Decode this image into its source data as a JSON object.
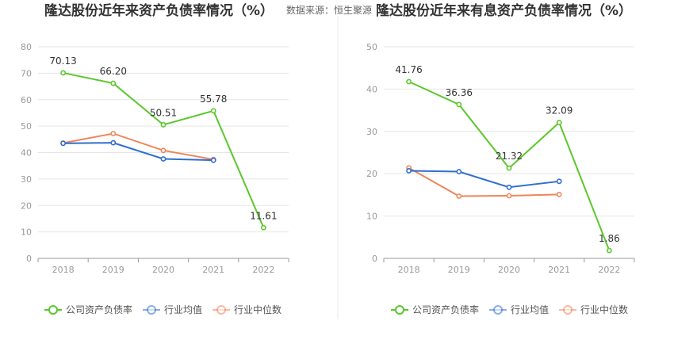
{
  "source": "数据来源：恒生聚源",
  "chart_data": [
    {
      "type": "line",
      "title": "隆达股份近年来资产负债率情况（%）",
      "categories": [
        "2018",
        "2019",
        "2020",
        "2021",
        "2022"
      ],
      "ylim": [
        0,
        80
      ],
      "yticks": [
        0,
        10,
        20,
        30,
        40,
        50,
        60,
        70,
        80
      ],
      "grid": true,
      "legend": "bottom",
      "series": [
        {
          "name": "公司资产负债率",
          "color": "#5cc72d",
          "values": [
            70.13,
            66.2,
            50.51,
            55.78,
            11.61
          ],
          "labels": [
            "70.13",
            "66.20",
            "50.51",
            "55.78",
            "11.61"
          ]
        },
        {
          "name": "行业均值",
          "color": "#2f6fd0",
          "values": [
            43.5,
            43.7,
            37.6,
            37.1,
            null
          ],
          "labels": []
        },
        {
          "name": "行业中位数",
          "color": "#f0855a",
          "values": [
            43.6,
            47.2,
            40.8,
            37.4,
            null
          ],
          "labels": []
        }
      ]
    },
    {
      "type": "line",
      "title": "隆达股份近年来有息资产负债率情况（%）",
      "categories": [
        "2018",
        "2019",
        "2020",
        "2021",
        "2022"
      ],
      "ylim": [
        0,
        50
      ],
      "yticks": [
        0,
        10,
        20,
        30,
        40,
        50
      ],
      "grid": true,
      "legend": "bottom",
      "series": [
        {
          "name": "公司资产负债率",
          "color": "#5cc72d",
          "values": [
            41.76,
            36.36,
            21.32,
            32.09,
            1.86
          ],
          "labels": [
            "41.76",
            "36.36",
            "21.32",
            "32.09",
            "1.86"
          ]
        },
        {
          "name": "行业均值",
          "color": "#2f6fd0",
          "values": [
            20.7,
            20.5,
            16.8,
            18.2,
            null
          ],
          "labels": []
        },
        {
          "name": "行业中位数",
          "color": "#f0855a",
          "values": [
            21.4,
            14.7,
            14.8,
            15.1,
            null
          ],
          "labels": []
        }
      ]
    }
  ]
}
